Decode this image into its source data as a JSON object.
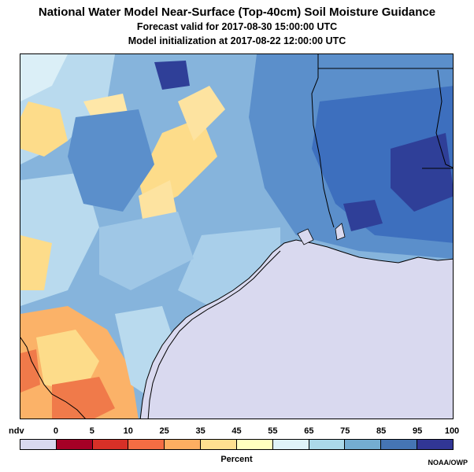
{
  "title": "National Water Model Near-Surface (Top-40cm) Soil Moisture Guidance",
  "subtitle_valid": "Forecast valid for 2017-08-30 15:00:00 UTC",
  "subtitle_init": "Model initialization at 2017-08-22 12:00:00 UTC",
  "legend": {
    "units": "Percent",
    "labels": [
      "ndv",
      "0",
      "5",
      "10",
      "25",
      "35",
      "45",
      "55",
      "65",
      "75",
      "85",
      "95",
      "100"
    ],
    "colors": [
      "#d9d9ef",
      "#a50026",
      "#d73027",
      "#f46d43",
      "#fdae61",
      "#fee090",
      "#ffffbf",
      "#e0f3f8",
      "#abd9e9",
      "#74add1",
      "#4575b4",
      "#313695"
    ]
  },
  "credit": "NOAA/OWP",
  "map_colors": {
    "gulf": "#d9d9ef",
    "land_base": "#86b4dc",
    "wet": "#5b8fcb",
    "very_wet": "#3d6fbe",
    "saturated": "#2f3f98",
    "light": "#b9daee",
    "pale": "#dbeff7",
    "dry": "#fddc8a",
    "drier": "#fbb268",
    "driest": "#f07a4a",
    "border": "#000000"
  }
}
